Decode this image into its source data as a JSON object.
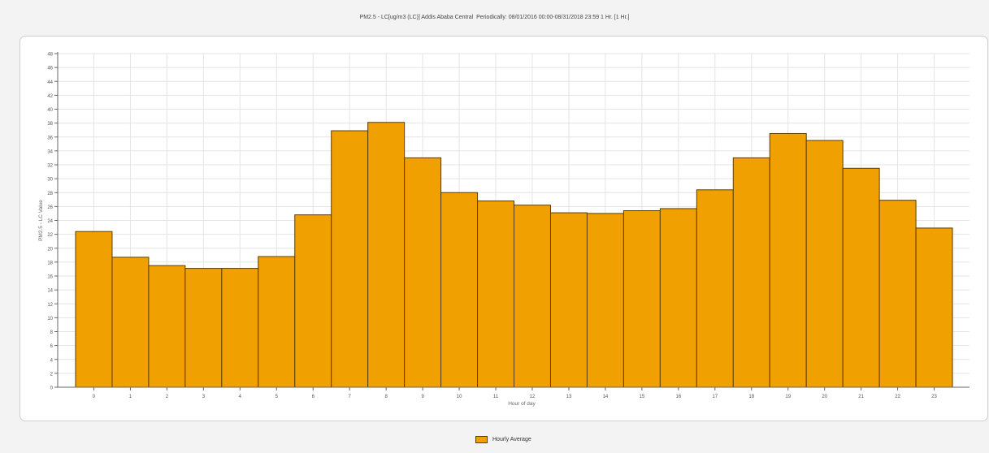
{
  "chart_data": {
    "type": "bar",
    "title": "PM2.5 - LC[ug/m3 (LC)] Addis Ababa Central  Periodically: 08/01/2016 00:00-08/31/2018 23:59 1 Hr. [1 Hr.]",
    "xlabel": "Hour of day",
    "ylabel": "PM2.5 - LC Value",
    "ylim": [
      0,
      48
    ],
    "yticks": [
      0,
      2,
      4,
      6,
      8,
      10,
      12,
      14,
      16,
      18,
      20,
      22,
      24,
      26,
      28,
      30,
      32,
      34,
      36,
      38,
      40,
      42,
      44,
      46,
      48
    ],
    "categories": [
      "0",
      "1",
      "2",
      "3",
      "4",
      "5",
      "6",
      "7",
      "8",
      "9",
      "10",
      "11",
      "12",
      "13",
      "14",
      "15",
      "16",
      "17",
      "18",
      "19",
      "20",
      "21",
      "22",
      "23"
    ],
    "series": [
      {
        "name": "Hourly Average",
        "values": [
          22.4,
          18.7,
          17.5,
          17.1,
          17.1,
          18.8,
          24.8,
          36.9,
          38.1,
          33.0,
          28.0,
          26.8,
          26.2,
          25.1,
          25.0,
          25.4,
          25.7,
          28.4,
          33.0,
          36.5,
          35.5,
          31.5,
          26.9,
          22.9
        ]
      }
    ],
    "bar_color": "#f0a000",
    "bar_edge_color": "#5a3c00",
    "grid": true,
    "legend_position": "bottom-center"
  }
}
